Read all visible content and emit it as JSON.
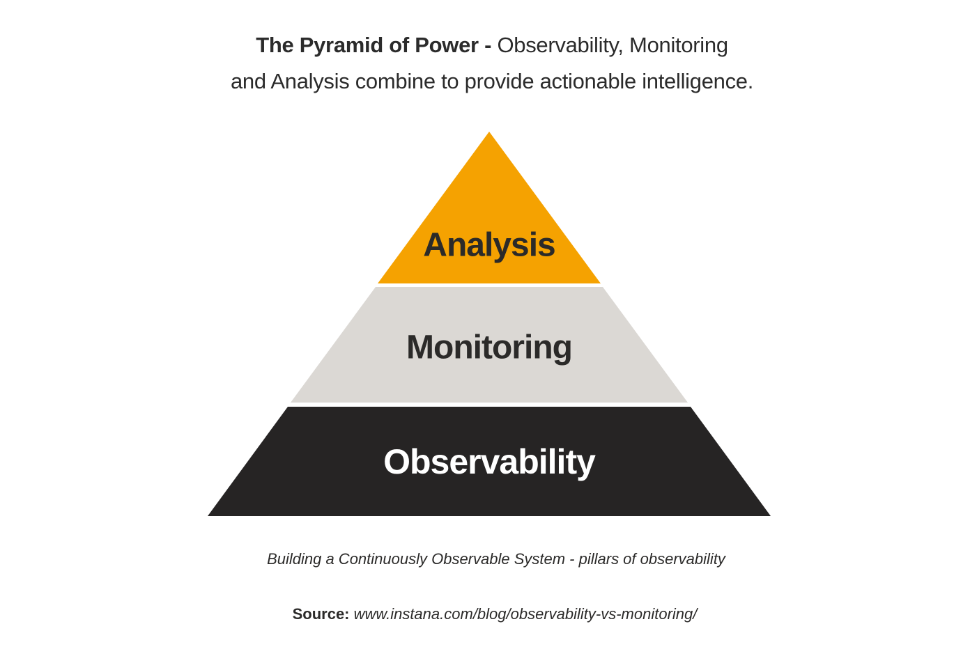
{
  "title": {
    "bold_part": "The Pyramid of Power - ",
    "regular_part": "Observability, Monitoring",
    "line2": "and Analysis combine to provide actionable intelligence."
  },
  "pyramid": {
    "layers": [
      {
        "label": "Analysis",
        "color": "#F5A201",
        "text_color": "#2B2A29"
      },
      {
        "label": "Monitoring",
        "color": "#DBD8D4",
        "text_color": "#2B2A29"
      },
      {
        "label": "Observability",
        "color": "#262424",
        "text_color": "#FFFFFF"
      }
    ]
  },
  "caption": "Building a Continuously Observable System - pillars of observability",
  "source": {
    "label": "Source:",
    "url_text": " www.instana.com/blog/observability-vs-monitoring/"
  }
}
